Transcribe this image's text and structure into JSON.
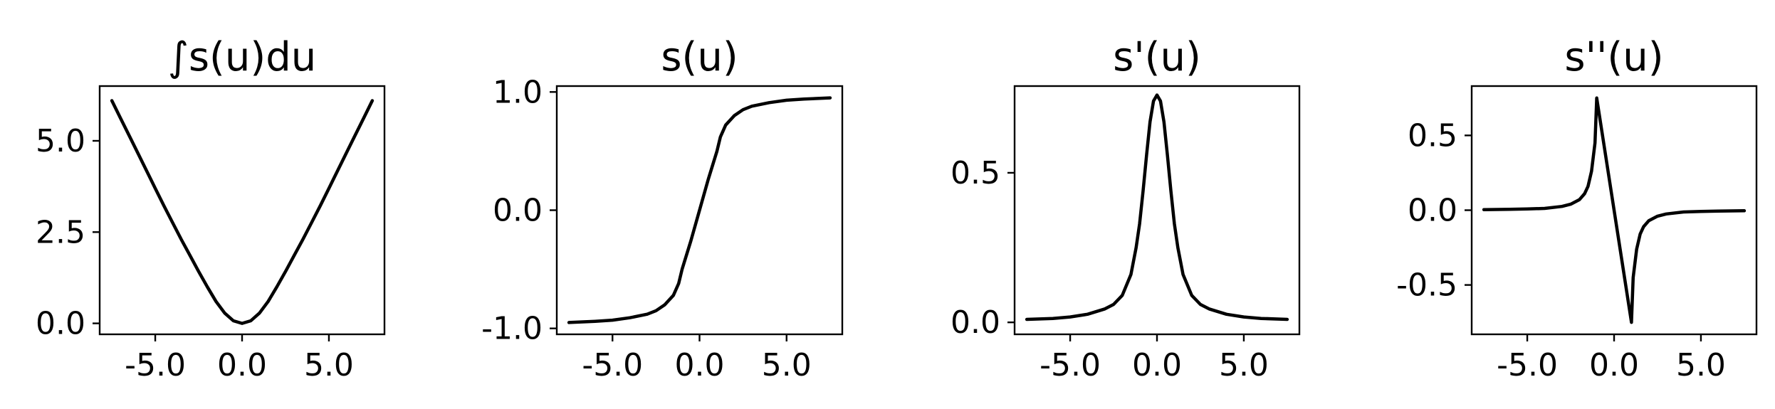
{
  "chart_data": [
    {
      "type": "line",
      "title": "∫s(u)du",
      "xlim": [
        -8.2,
        8.2
      ],
      "ylim": [
        -0.3,
        6.5
      ],
      "xticks": [
        -5,
        0,
        5
      ],
      "yticks": [
        0,
        2.5,
        5
      ],
      "xtick_labels": [
        "-5.0",
        "0.0",
        "5.0"
      ],
      "ytick_labels": [
        "0.0",
        "2.5",
        "5.0"
      ],
      "series": [
        {
          "x": [
            -7.5,
            -7,
            -6.5,
            -6,
            -5.5,
            -5,
            -4.5,
            -4,
            -3.5,
            -3,
            -2.5,
            -2,
            -1.5,
            -1,
            -0.5,
            0,
            0.5,
            1,
            1.5,
            2,
            2.5,
            3,
            3.5,
            4,
            4.5,
            5,
            5.5,
            6,
            6.5,
            7,
            7.5
          ],
          "y": [
            6.1,
            5.62,
            5.14,
            4.66,
            4.18,
            3.7,
            3.22,
            2.76,
            2.3,
            1.86,
            1.42,
            1.0,
            0.6,
            0.28,
            0.07,
            0.0,
            0.07,
            0.28,
            0.6,
            1.0,
            1.42,
            1.86,
            2.3,
            2.76,
            3.22,
            3.7,
            4.18,
            4.66,
            5.14,
            5.62,
            6.1
          ]
        }
      ]
    },
    {
      "type": "line",
      "title": "s(u)",
      "xlim": [
        -8.2,
        8.2
      ],
      "ylim": [
        -1.05,
        1.05
      ],
      "xticks": [
        -5,
        0,
        5
      ],
      "yticks": [
        -1,
        0,
        1
      ],
      "xtick_labels": [
        "-5.0",
        "0.0",
        "5.0"
      ],
      "ytick_labels": [
        "-1.0",
        "0.0",
        "1.0"
      ],
      "series": [
        {
          "x": [
            -7.5,
            -6,
            -5,
            -4,
            -3,
            -2.5,
            -2,
            -1.5,
            -1.2,
            -1,
            -0.5,
            0,
            0.5,
            1,
            1.2,
            1.5,
            2,
            2.5,
            3,
            4,
            5,
            6,
            7.5
          ],
          "y": [
            -0.95,
            -0.94,
            -0.93,
            -0.91,
            -0.88,
            -0.85,
            -0.8,
            -0.72,
            -0.62,
            -0.5,
            -0.26,
            0.0,
            0.26,
            0.5,
            0.62,
            0.72,
            0.8,
            0.85,
            0.88,
            0.91,
            0.93,
            0.94,
            0.95
          ]
        }
      ]
    },
    {
      "type": "line",
      "title": "s'(u)",
      "xlim": [
        -8.2,
        8.2
      ],
      "ylim": [
        -0.04,
        0.79
      ],
      "xticks": [
        -5,
        0,
        5
      ],
      "yticks": [
        0,
        0.5
      ],
      "xtick_labels": [
        "-5.0",
        "0.0",
        "5.0"
      ],
      "ytick_labels": [
        "0.0",
        "0.5"
      ],
      "series": [
        {
          "x": [
            -7.5,
            -6,
            -5,
            -4,
            -3,
            -2.5,
            -2,
            -1.5,
            -1.2,
            -1,
            -0.8,
            -0.6,
            -0.4,
            -0.2,
            0,
            0.2,
            0.4,
            0.6,
            0.8,
            1,
            1.2,
            1.5,
            2,
            2.5,
            3,
            4,
            5,
            6,
            7.5
          ],
          "y": [
            0.01,
            0.013,
            0.018,
            0.027,
            0.045,
            0.06,
            0.09,
            0.16,
            0.25,
            0.33,
            0.44,
            0.56,
            0.67,
            0.74,
            0.76,
            0.74,
            0.67,
            0.56,
            0.44,
            0.33,
            0.25,
            0.16,
            0.09,
            0.06,
            0.045,
            0.027,
            0.018,
            0.013,
            0.01
          ]
        }
      ]
    },
    {
      "type": "line",
      "title": "s''(u)",
      "xlim": [
        -8.2,
        8.2
      ],
      "ylim": [
        -0.83,
        0.83
      ],
      "xticks": [
        -5,
        0,
        5
      ],
      "yticks": [
        -0.5,
        0,
        0.5
      ],
      "xtick_labels": [
        "-5.0",
        "0.0",
        "5.0"
      ],
      "ytick_labels": [
        "-0.5",
        "0.0",
        "0.5"
      ],
      "series": [
        {
          "x": [
            -7.5,
            -6,
            -5,
            -4,
            -3,
            -2.5,
            -2,
            -1.7,
            -1.5,
            -1.3,
            -1.1,
            -1,
            0,
            1,
            1.1,
            1.3,
            1.5,
            1.7,
            2,
            2.5,
            3,
            4,
            5,
            6,
            7.5
          ],
          "y": [
            0.004,
            0.006,
            0.008,
            0.012,
            0.025,
            0.04,
            0.07,
            0.11,
            0.16,
            0.26,
            0.45,
            0.75,
            0.0,
            -0.75,
            -0.45,
            -0.26,
            -0.16,
            -0.11,
            -0.07,
            -0.04,
            -0.025,
            -0.012,
            -0.008,
            -0.006,
            -0.004
          ]
        }
      ]
    }
  ]
}
